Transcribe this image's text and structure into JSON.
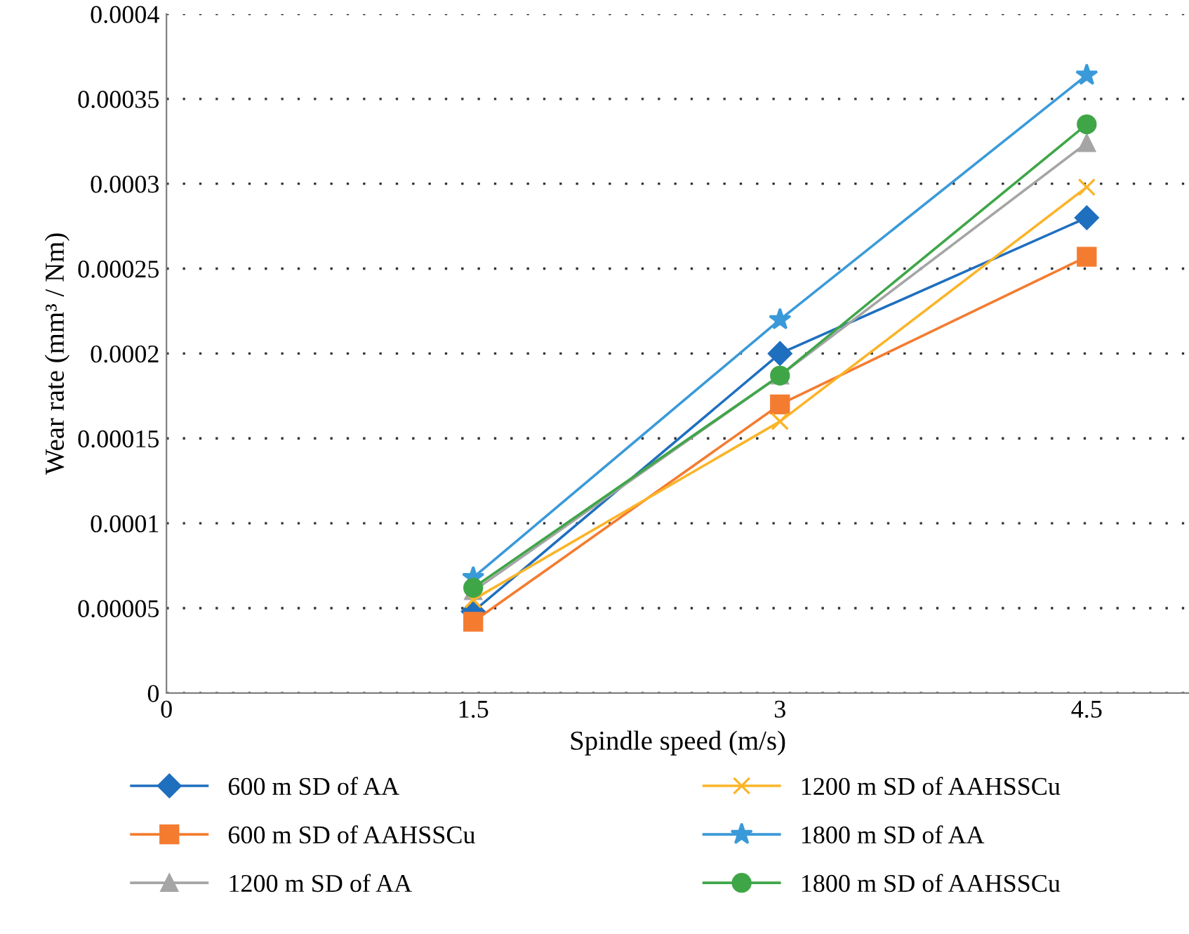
{
  "chart_data": {
    "type": "line",
    "xlabel": "Spindle speed (m/s)",
    "ylabel": "Wear rate (mm³ / Nm)",
    "xlim": [
      0,
      5
    ],
    "xticks": [
      0,
      1.5,
      3,
      4.5
    ],
    "ylim": [
      0,
      0.0004
    ],
    "yticks": [
      0,
      {
        "value": 5e-05,
        "label": "0.00005"
      },
      {
        "value": 0.0001,
        "label": "0.0001"
      },
      {
        "value": 0.00015,
        "label": "0.00015"
      },
      {
        "value": 0.0002,
        "label": "0.0002"
      },
      {
        "value": 0.00025,
        "label": "0.00025"
      },
      {
        "value": 0.0003,
        "label": "0.0003"
      },
      {
        "value": 0.00035,
        "label": "0.00035"
      },
      {
        "value": 0.0004,
        "label": "0.0004"
      }
    ],
    "grid": "y",
    "legend": "bottom",
    "line_style": "solid",
    "series": [
      {
        "name": "600 m SD of AA",
        "color": "#1f6fbf",
        "marker": "diamond",
        "x": [
          1.5,
          3,
          4.5
        ],
        "values": [
          4.8e-05,
          0.0002,
          0.00028
        ]
      },
      {
        "name": "600 m SD of AAHSSCu",
        "color": "#f47c30",
        "marker": "square",
        "x": [
          1.5,
          3,
          4.5
        ],
        "values": [
          4.2e-05,
          0.00017,
          0.000257
        ]
      },
      {
        "name": "1200 m SD of AA",
        "color": "#a5a5a5",
        "marker": "triangle",
        "x": [
          1.5,
          3,
          4.5
        ],
        "values": [
          6e-05,
          0.000187,
          0.000324
        ]
      },
      {
        "name": "1200 m SD of AAHSSCu",
        "color": "#fbb428",
        "marker": "cross",
        "x": [
          1.5,
          3,
          4.5
        ],
        "values": [
          5.5e-05,
          0.00016,
          0.000298
        ]
      },
      {
        "name": "1800 m SD of AA",
        "color": "#3a9ad9",
        "marker": "star",
        "x": [
          1.5,
          3,
          4.5
        ],
        "values": [
          6.8e-05,
          0.00022,
          0.000364
        ]
      },
      {
        "name": "1800 m SD of AAHSSCu",
        "color": "#3fa648",
        "marker": "circle",
        "x": [
          1.5,
          3,
          4.5
        ],
        "values": [
          6.2e-05,
          0.000187,
          0.000335
        ]
      }
    ]
  }
}
